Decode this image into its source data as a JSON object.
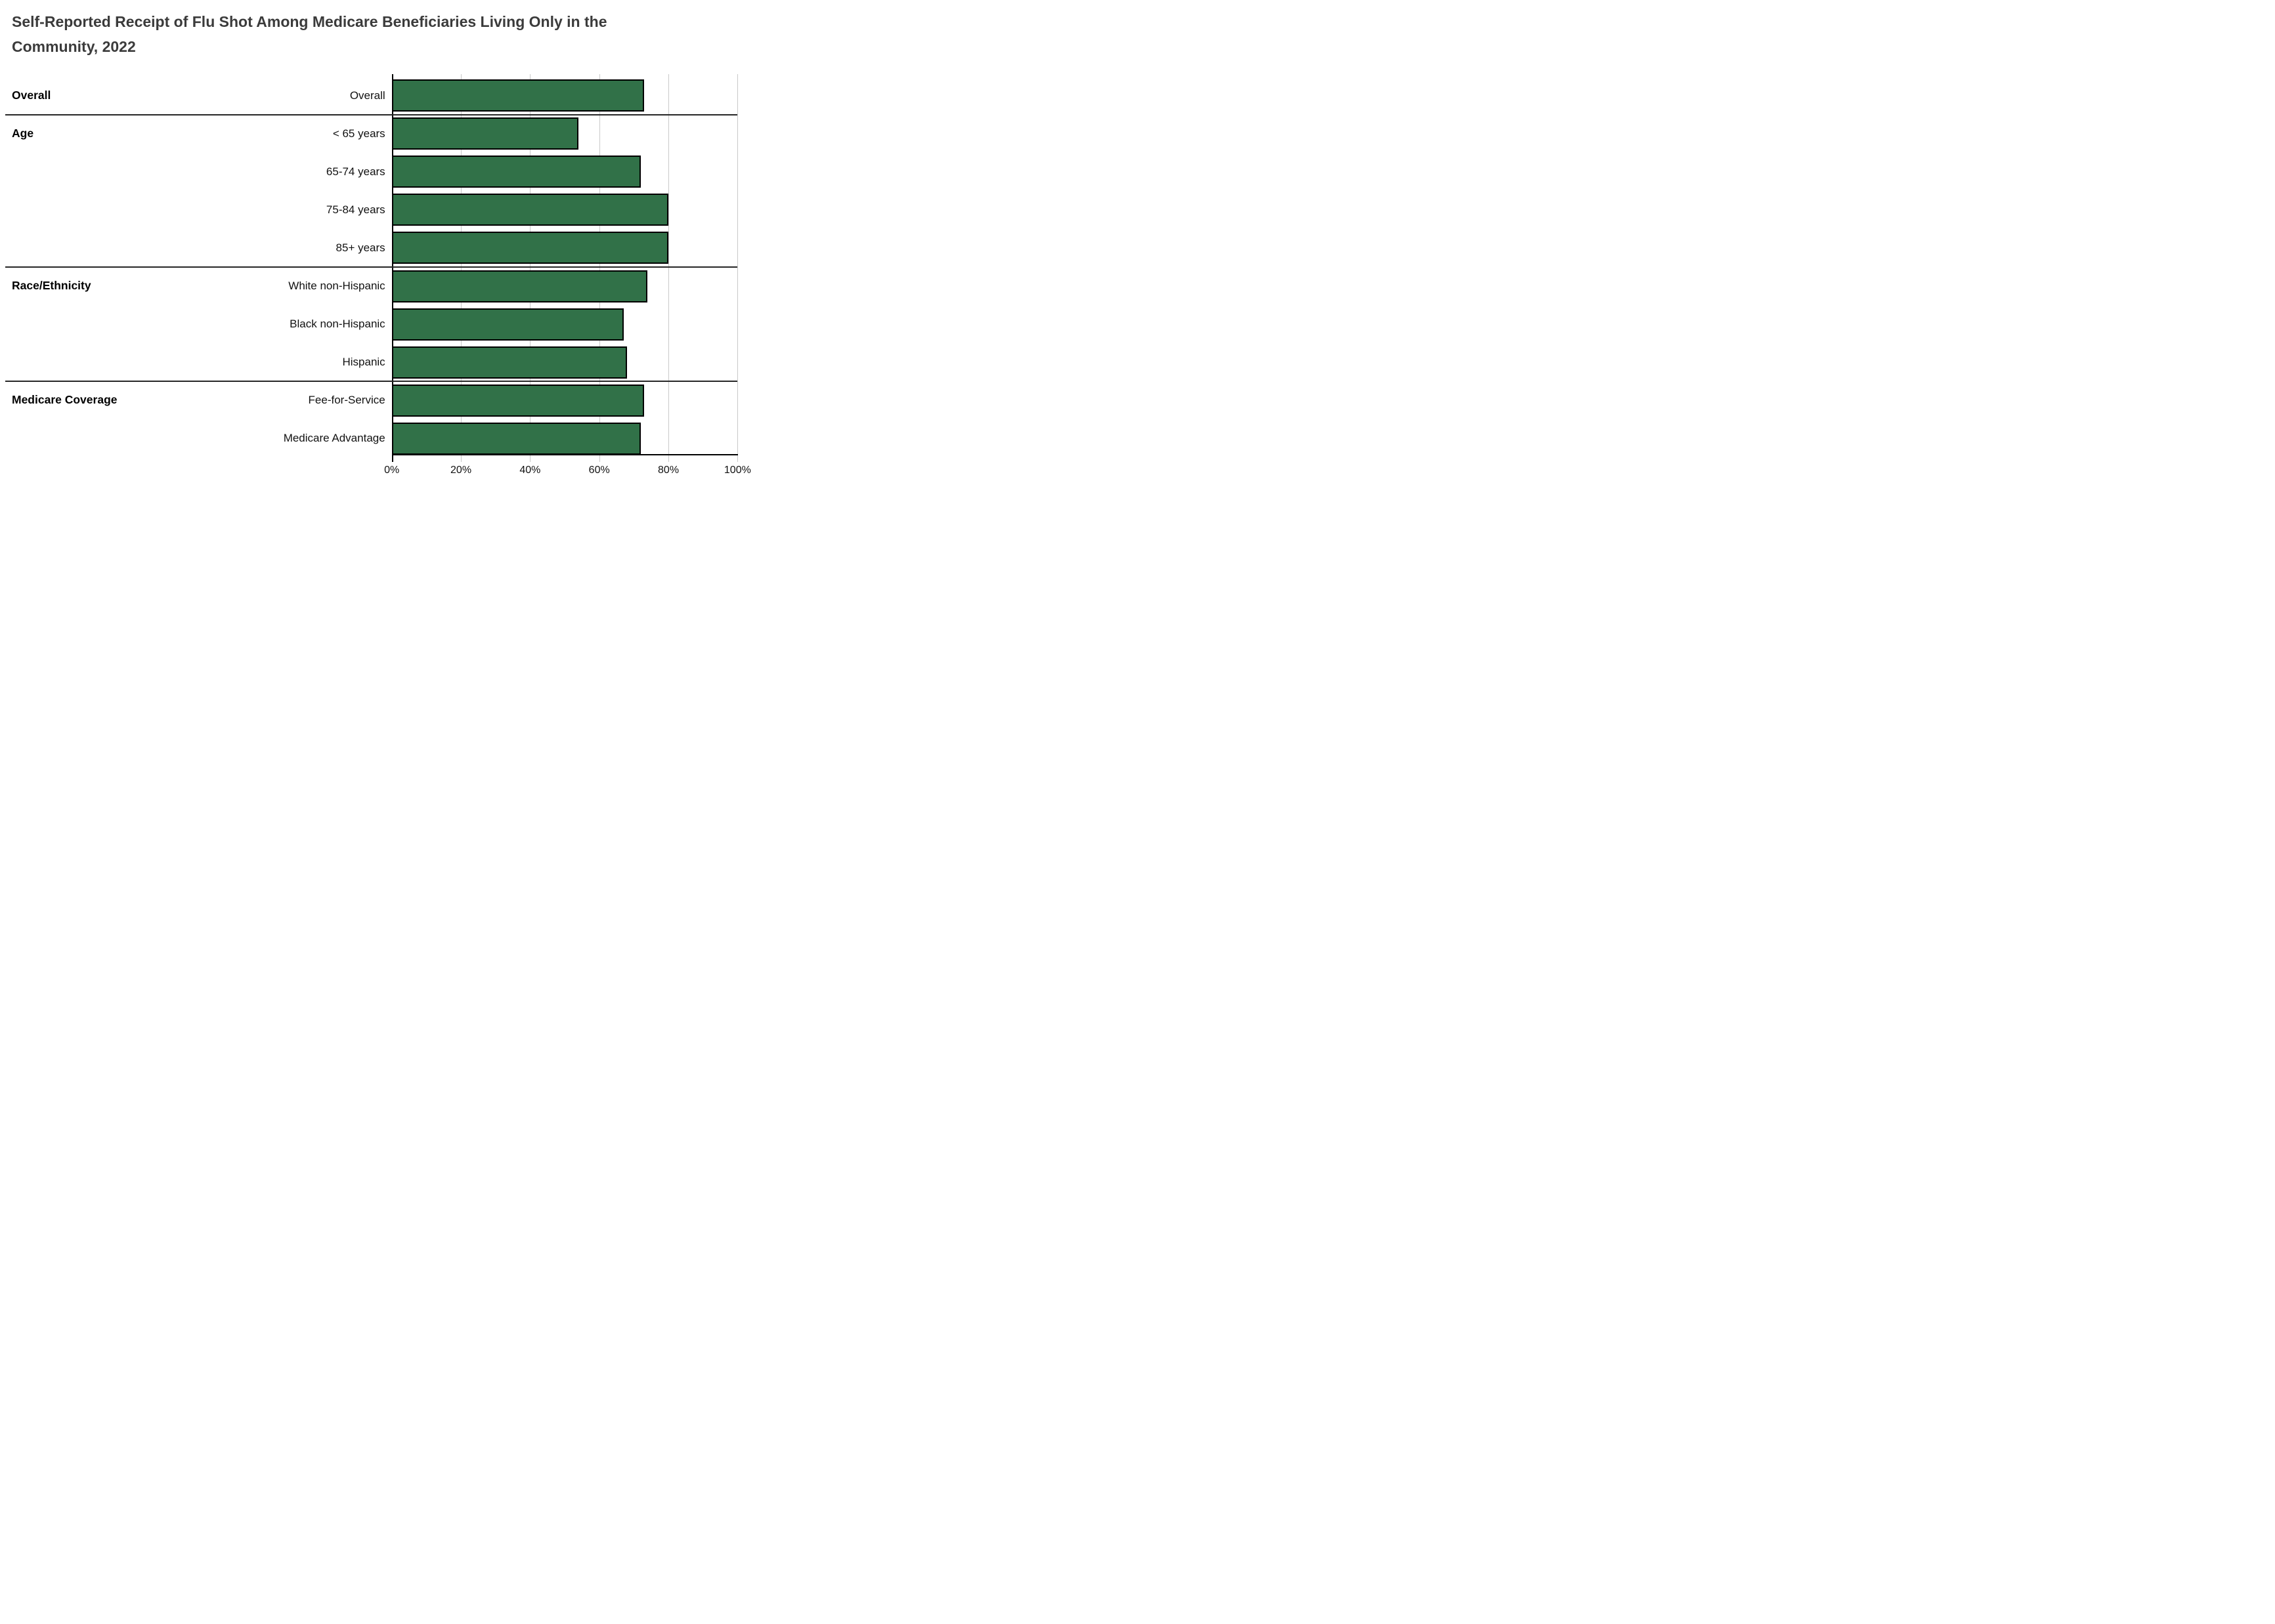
{
  "title_lines": [
    "Self-Reported Receipt of Flu Shot Among Medicare Beneficiaries Living Only in the",
    "Community, 2022"
  ],
  "colors": {
    "bar_fill": "#317148",
    "bar_stroke": "#000000",
    "gridline": "#c9c9c9",
    "axis": "#000000",
    "separator": "#262626",
    "title_text": "#3b3b3b",
    "label_text": "#111111"
  },
  "chart_data": {
    "type": "bar",
    "orientation": "horizontal",
    "title": "Self-Reported Receipt of Flu Shot Among Medicare Beneficiaries Living Only in the Community, 2022",
    "xlabel": "",
    "ylabel": "",
    "xlim": [
      0,
      100
    ],
    "x_ticks": [
      "0%",
      "20%",
      "40%",
      "60%",
      "80%",
      "100%"
    ],
    "grid": true,
    "legend": "none",
    "unit": "percent",
    "groups": [
      {
        "label": "Overall",
        "rows": [
          {
            "label": "Overall",
            "value": 73
          }
        ]
      },
      {
        "label": "Age",
        "rows": [
          {
            "label": "< 65 years",
            "value": 54
          },
          {
            "label": "65-74 years",
            "value": 72
          },
          {
            "label": "75-84 years",
            "value": 80
          },
          {
            "label": "85+ years",
            "value": 80
          }
        ]
      },
      {
        "label": "Race/Ethnicity",
        "rows": [
          {
            "label": "White non-Hispanic",
            "value": 74
          },
          {
            "label": "Black non-Hispanic",
            "value": 67
          },
          {
            "label": "Hispanic",
            "value": 68
          }
        ]
      },
      {
        "label": "Medicare Coverage",
        "rows": [
          {
            "label": "Fee-for-Service",
            "value": 73
          },
          {
            "label": "Medicare Advantage",
            "value": 72
          }
        ]
      }
    ]
  }
}
